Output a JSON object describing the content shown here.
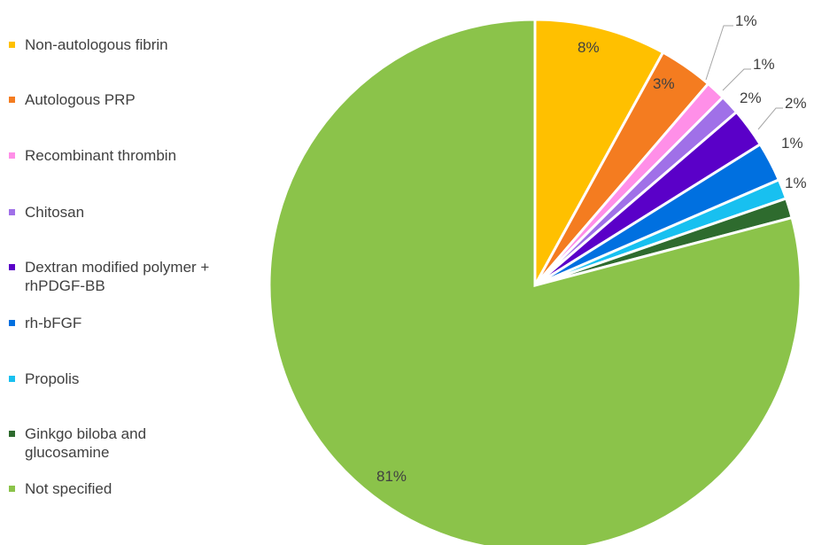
{
  "chart_data": {
    "type": "pie",
    "title": "",
    "legend_position": "left",
    "slices": [
      {
        "label": "Non-autologous fibrin",
        "value": 8,
        "text": "8%",
        "color": "#FFC000"
      },
      {
        "label": "Autologous PRP",
        "value": 3,
        "text": "3%",
        "color": "#F47C20"
      },
      {
        "label": "Recombinant thrombin",
        "value": 1,
        "text": "1%",
        "color": "#FF8FE8"
      },
      {
        "label": "Chitosan",
        "value": 1,
        "text": "1%",
        "color": "#A070E8"
      },
      {
        "label": "Dextran modified polymer + rhPDGF-BB",
        "value": 2,
        "text": "2%",
        "color": "#5A00C8"
      },
      {
        "label": "rh-bFGF",
        "value": 2,
        "text": "2%",
        "color": "#0070E0"
      },
      {
        "label": "Propolis",
        "value": 1,
        "text": "1%",
        "color": "#18C0F0"
      },
      {
        "label": "Ginkgo biloba and glucosamine",
        "value": 1,
        "text": "1%",
        "color": "#2E6B2E"
      },
      {
        "label": "Not specified",
        "value": 81,
        "text": "81%",
        "color": "#8BC34A"
      }
    ]
  }
}
